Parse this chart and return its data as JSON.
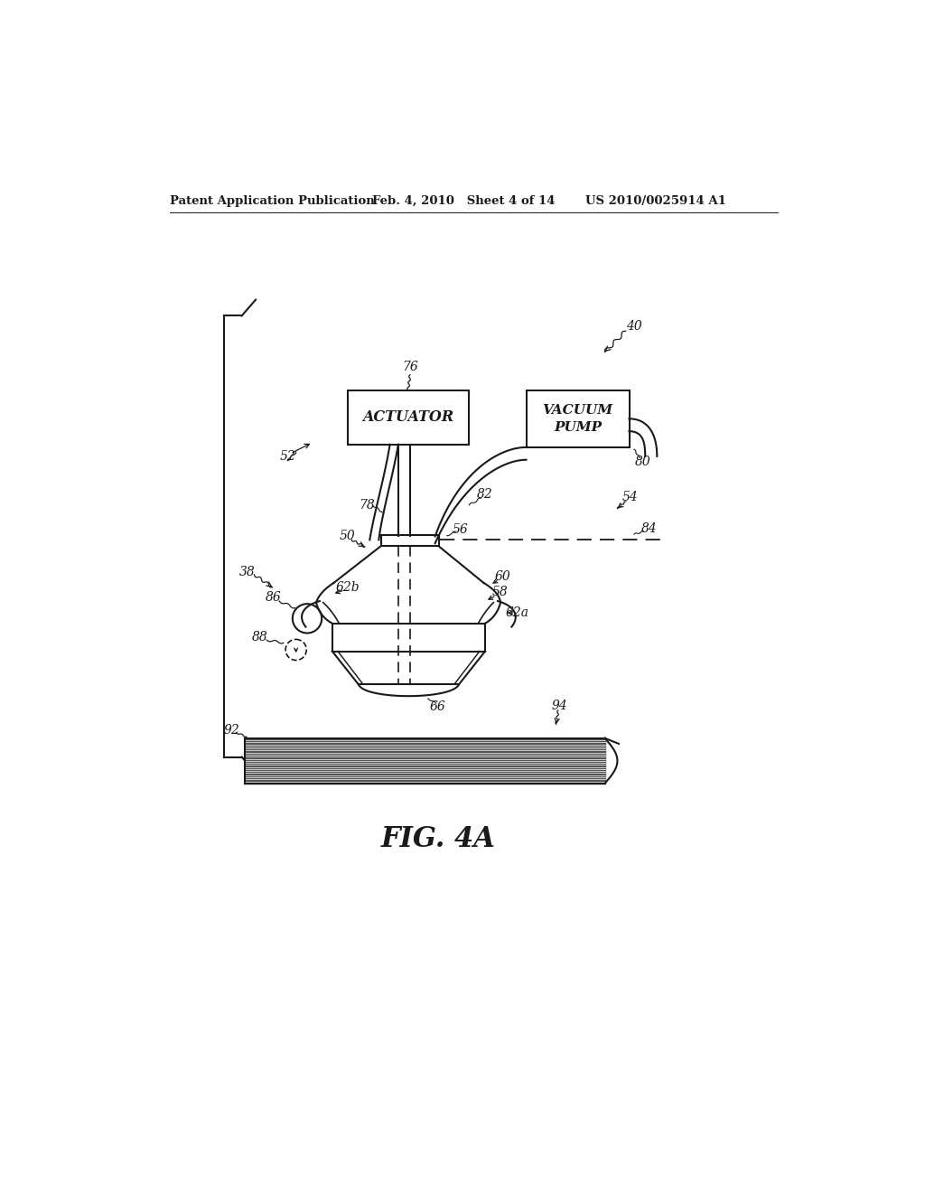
{
  "bg_color": "#ffffff",
  "line_color": "#1a1a1a",
  "header_left": "Patent Application Publication",
  "header_mid": "Feb. 4, 2010   Sheet 4 of 14",
  "header_right": "US 2010/0025914 A1",
  "figure_label": "FIG. 4A"
}
